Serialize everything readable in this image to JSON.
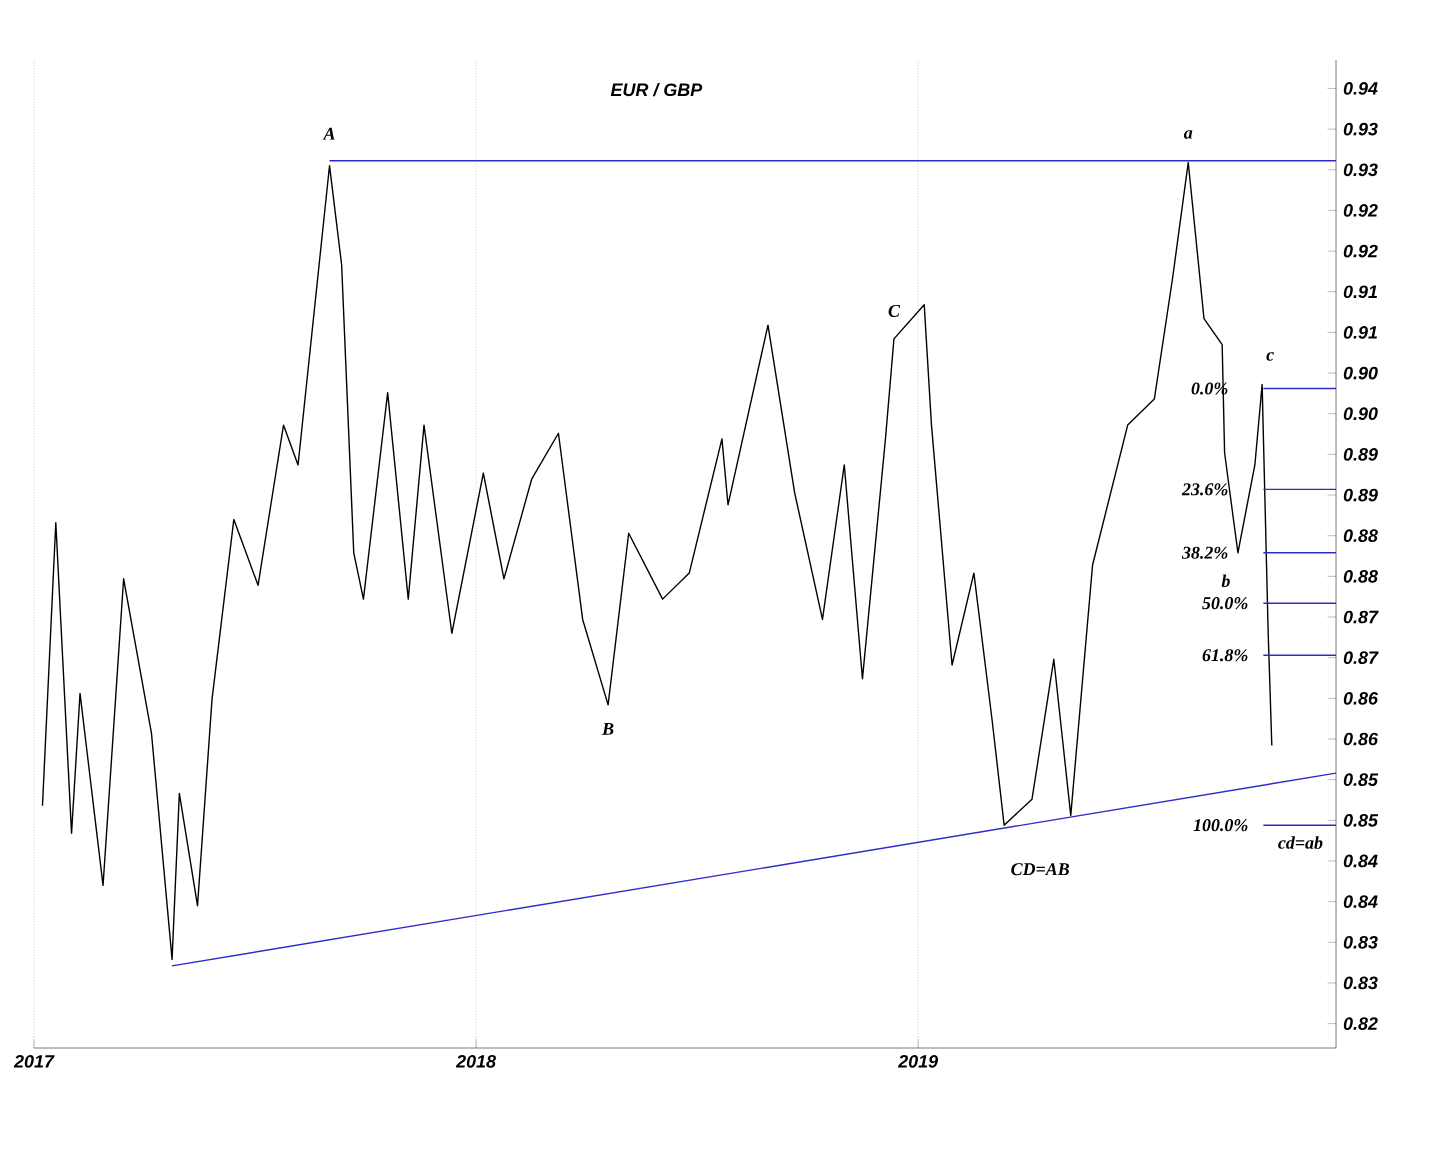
{
  "chart_data": {
    "type": "line",
    "title": "EUR / GBP",
    "xlim": [
      "2017-01-01",
      "2019-12-12"
    ],
    "xticks": [
      {
        "value": "2017-01-01",
        "label": "2017"
      },
      {
        "value": "2018-01-01",
        "label": "2018"
      },
      {
        "value": "2019-01-01",
        "label": "2019"
      }
    ],
    "ylim": [
      0.817,
      0.9385
    ],
    "yticks": [
      {
        "value": 0.82,
        "label": "0.82"
      },
      {
        "value": 0.825,
        "label": "0.83"
      },
      {
        "value": 0.83,
        "label": "0.83"
      },
      {
        "value": 0.835,
        "label": "0.84"
      },
      {
        "value": 0.84,
        "label": "0.84"
      },
      {
        "value": 0.845,
        "label": "0.85"
      },
      {
        "value": 0.85,
        "label": "0.85"
      },
      {
        "value": 0.855,
        "label": "0.86"
      },
      {
        "value": 0.86,
        "label": "0.86"
      },
      {
        "value": 0.865,
        "label": "0.87"
      },
      {
        "value": 0.87,
        "label": "0.87"
      },
      {
        "value": 0.875,
        "label": "0.88"
      },
      {
        "value": 0.88,
        "label": "0.88"
      },
      {
        "value": 0.885,
        "label": "0.89"
      },
      {
        "value": 0.89,
        "label": "0.89"
      },
      {
        "value": 0.895,
        "label": "0.90"
      },
      {
        "value": 0.9,
        "label": "0.90"
      },
      {
        "value": 0.905,
        "label": "0.91"
      },
      {
        "value": 0.91,
        "label": "0.91"
      },
      {
        "value": 0.915,
        "label": "0.92"
      },
      {
        "value": 0.92,
        "label": "0.92"
      },
      {
        "value": 0.925,
        "label": "0.93"
      },
      {
        "value": 0.93,
        "label": "0.93"
      },
      {
        "value": 0.935,
        "label": "0.94"
      }
    ],
    "grid": "x",
    "series": [
      {
        "color": "#000000",
        "x": [
          "2017-01-08",
          "2017-01-19",
          "2017-02-01",
          "2017-02-08",
          "2017-02-27",
          "2017-03-16",
          "2017-04-08",
          "2017-04-25",
          "2017-05-01",
          "2017-05-16",
          "2017-05-28",
          "2017-06-15",
          "2017-07-05",
          "2017-07-26",
          "2017-08-07",
          "2017-09-02",
          "2017-09-12",
          "2017-09-22",
          "2017-09-30",
          "2017-10-20",
          "2017-11-06",
          "2017-11-19",
          "2017-12-12",
          "2018-01-07",
          "2018-01-24",
          "2018-02-16",
          "2018-03-10",
          "2018-03-30",
          "2018-04-20",
          "2018-05-07",
          "2018-06-04",
          "2018-06-26",
          "2018-07-23",
          "2018-07-28",
          "2018-08-30",
          "2018-09-21",
          "2018-10-14",
          "2018-11-01",
          "2018-11-16",
          "2018-12-05",
          "2018-12-12",
          "2019-01-06",
          "2019-01-12",
          "2019-01-29",
          "2019-02-16",
          "2019-03-03",
          "2019-03-13",
          "2019-04-05",
          "2019-04-23",
          "2019-05-07",
          "2019-05-25",
          "2019-06-23",
          "2019-07-15",
          "2019-07-30",
          "2019-08-12",
          "2019-08-25",
          "2019-09-09",
          "2019-09-11",
          "2019-09-22",
          "2019-10-06",
          "2019-10-12",
          "2019-10-17",
          "2019-10-20"
        ],
        "values": [
          0.8468,
          0.8816,
          0.8434,
          0.8606,
          0.837,
          0.8747,
          0.8557,
          0.8279,
          0.8483,
          0.8345,
          0.8599,
          0.882,
          0.8739,
          0.8936,
          0.8887,
          0.9255,
          0.9133,
          0.8779,
          0.8722,
          0.8976,
          0.8722,
          0.8936,
          0.868,
          0.8877,
          0.8747,
          0.887,
          0.8926,
          0.8697,
          0.8592,
          0.8803,
          0.8722,
          0.8754,
          0.8919,
          0.8838,
          0.9059,
          0.8853,
          0.8697,
          0.8887,
          0.8624,
          0.8919,
          0.9042,
          0.9084,
          0.8936,
          0.8641,
          0.8754,
          0.8574,
          0.8444,
          0.8476,
          0.8648,
          0.8456,
          0.8764,
          0.8936,
          0.8968,
          0.9116,
          0.9259,
          0.9067,
          0.9035,
          0.8902,
          0.8779,
          0.8887,
          0.8986,
          0.868,
          0.8542
        ]
      },
      {
        "color": "#2b2bcc",
        "x": [
          "2017-09-02",
          "2019-12-12"
        ],
        "values": [
          0.9261,
          0.9261
        ]
      },
      {
        "color": "#2b2bcc",
        "x": [
          "2017-04-25",
          "2019-12-12"
        ],
        "values": [
          0.8271,
          0.8508
        ]
      },
      {
        "color": "#2b2bcc",
        "x": [
          "2019-10-13",
          "2019-12-12"
        ],
        "values": [
          0.8981,
          0.8981
        ]
      },
      {
        "color": "#2b2bcc",
        "x": [
          "2019-10-13",
          "2019-12-12"
        ],
        "values": [
          0.8857,
          0.8857
        ]
      },
      {
        "color": "#2b2bcc",
        "x": [
          "2019-10-13",
          "2019-12-12"
        ],
        "values": [
          0.8779,
          0.8779
        ]
      },
      {
        "color": "#2b2bcc",
        "x": [
          "2019-10-13",
          "2019-12-12"
        ],
        "values": [
          0.8717,
          0.8717
        ]
      },
      {
        "color": "#2b2bcc",
        "x": [
          "2019-10-13",
          "2019-12-12"
        ],
        "values": [
          0.8653,
          0.8653
        ]
      },
      {
        "color": "#2b2bcc",
        "x": [
          "2019-10-13",
          "2019-12-12"
        ],
        "values": [
          0.8444,
          0.8444
        ]
      }
    ],
    "annotations": [
      {
        "text": "A",
        "x": "2017-09-02",
        "y": 0.9255
      },
      {
        "text": "B",
        "x": "2018-04-20",
        "y": 0.8592
      },
      {
        "text": "C",
        "x": "2018-12-12",
        "y": 0.9042
      },
      {
        "text": "CD=AB",
        "x": "2019-03-13",
        "y": 0.8444
      },
      {
        "text": "a",
        "x": "2019-08-12",
        "y": 0.9259
      },
      {
        "text": "b",
        "x": "2019-09-22",
        "y": 0.8779
      },
      {
        "text": "c",
        "x": "2019-10-12",
        "y": 0.8986
      },
      {
        "text": "cd=ab",
        "x": "2019-12-12",
        "y": 0.8444
      },
      {
        "text": "0.0%",
        "x": "2019-10-13",
        "y": 0.8981
      },
      {
        "text": "23.6%",
        "x": "2019-10-13",
        "y": 0.8857
      },
      {
        "text": "38.2%",
        "x": "2019-10-13",
        "y": 0.8779
      },
      {
        "text": "50.0%",
        "x": "2019-10-13",
        "y": 0.8717
      },
      {
        "text": "61.8%",
        "x": "2019-10-13",
        "y": 0.8653
      },
      {
        "text": "100.0%",
        "x": "2019-10-13",
        "y": 0.8444
      }
    ]
  }
}
